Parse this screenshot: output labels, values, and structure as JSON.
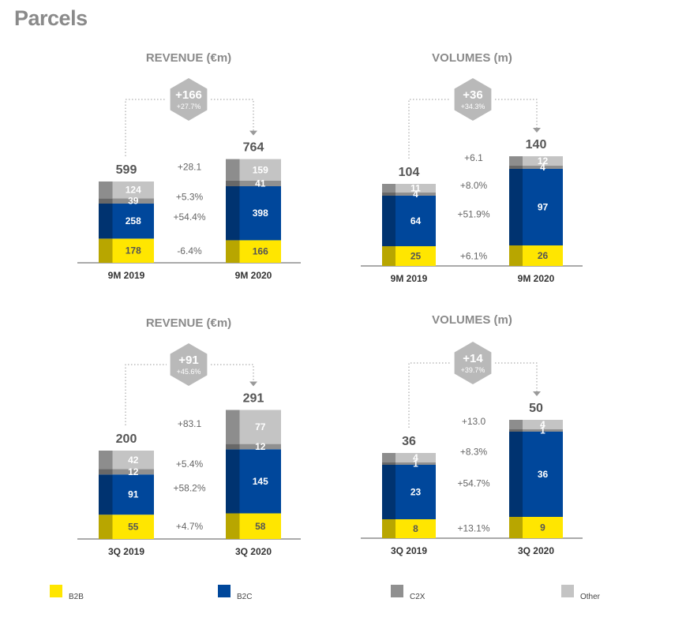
{
  "page": {
    "title": "Parcels"
  },
  "colors": {
    "B2B": "#ffe600",
    "B2C": "#00479b",
    "C2X": "#909090",
    "Other": "#c4c4c4",
    "text_grey": "#888888"
  },
  "legend": [
    {
      "key": "B2B",
      "label": "B2B"
    },
    {
      "key": "B2C",
      "label": "B2C"
    },
    {
      "key": "C2X",
      "label": "C2X"
    },
    {
      "key": "Other",
      "label": "Other"
    }
  ],
  "chart_data": [
    {
      "type": "bar",
      "title": "REVENUE (€m)",
      "categories": [
        "9M 2019",
        "9M 2020"
      ],
      "series": [
        {
          "name": "B2B",
          "values": [
            178,
            166
          ]
        },
        {
          "name": "B2C",
          "values": [
            258,
            398
          ]
        },
        {
          "name": "C2X",
          "values": [
            39,
            41
          ]
        },
        {
          "name": "Other",
          "values": [
            124,
            159
          ]
        }
      ],
      "totals": [
        "599",
        "764"
      ],
      "change": {
        "absolute": "+166",
        "percent": "+27.7%"
      },
      "segment_changes": {
        "Other": "+28.1",
        "C2X": "+5.3%",
        "B2C": "+54.4%",
        "B2B": "-6.4%"
      }
    },
    {
      "type": "bar",
      "title": "VOLUMES (m)",
      "categories": [
        "9M 2019",
        "9M 2020"
      ],
      "series": [
        {
          "name": "B2B",
          "values": [
            25,
            26
          ]
        },
        {
          "name": "B2C",
          "values": [
            64,
            97
          ]
        },
        {
          "name": "C2X",
          "values": [
            4,
            4
          ]
        },
        {
          "name": "Other",
          "values": [
            11,
            12
          ]
        }
      ],
      "totals": [
        "104",
        "140"
      ],
      "change": {
        "absolute": "+36",
        "percent": "+34.3%"
      },
      "segment_changes": {
        "Other": "+6.1",
        "C2X": "+8.0%",
        "B2C": "+51.9%",
        "B2B": "+6.1%"
      }
    },
    {
      "type": "bar",
      "title": "REVENUE (€m)",
      "categories": [
        "3Q 2019",
        "3Q 2020"
      ],
      "series": [
        {
          "name": "B2B",
          "values": [
            55,
            58
          ]
        },
        {
          "name": "B2C",
          "values": [
            91,
            145
          ]
        },
        {
          "name": "C2X",
          "values": [
            12,
            12
          ]
        },
        {
          "name": "Other",
          "values": [
            42,
            77
          ]
        }
      ],
      "totals": [
        "200",
        "291"
      ],
      "change": {
        "absolute": "+91",
        "percent": "+45.6%"
      },
      "segment_changes": {
        "Other": "+83.1",
        "C2X": "+5.4%",
        "B2C": "+58.2%",
        "B2B": "+4.7%"
      }
    },
    {
      "type": "bar",
      "title": "VOLUMES (m)",
      "categories": [
        "3Q 2019",
        "3Q 2020"
      ],
      "series": [
        {
          "name": "B2B",
          "values": [
            8,
            9
          ]
        },
        {
          "name": "B2C",
          "values": [
            23,
            36
          ]
        },
        {
          "name": "C2X",
          "values": [
            1,
            1
          ]
        },
        {
          "name": "Other",
          "values": [
            4,
            4
          ]
        }
      ],
      "totals": [
        "36",
        "50"
      ],
      "change": {
        "absolute": "+14",
        "percent": "+39.7%"
      },
      "segment_changes": {
        "Other": "+13.0",
        "C2X": "+8.3%",
        "B2C": "+54.7%",
        "B2B": "+13.1%"
      }
    }
  ]
}
